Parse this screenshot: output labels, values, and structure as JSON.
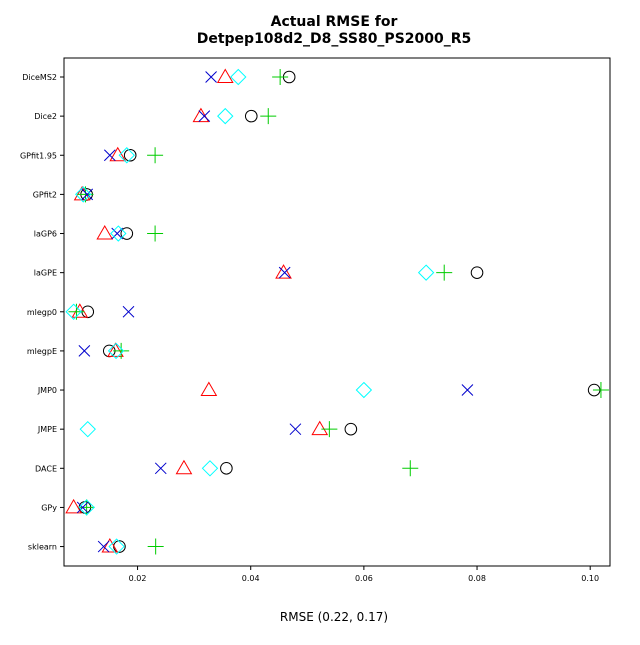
{
  "chart_data": {
    "type": "scatter",
    "title": "Actual RMSE for",
    "subtitle": "Detpep108d2_D8_SS80_PS2000_R5",
    "xlabel": "RMSE (0.22, 0.17)",
    "ylabel": "",
    "xlim": [
      0.007,
      0.1035
    ],
    "xticks": [
      0.02,
      0.04,
      0.06,
      0.08,
      0.1
    ],
    "xtick_labels": [
      "0.02",
      "0.04",
      "0.06",
      "0.08",
      "0.10"
    ],
    "grid": false,
    "legend": "none",
    "categories": [
      "DiceMS2",
      "Dice2",
      "GPfit1.95",
      "GPfit2",
      "laGP6",
      "laGPE",
      "mlegp0",
      "mlegpE",
      "JMP0",
      "JMPE",
      "DACE",
      "GPy",
      "sklearn"
    ],
    "series": [
      {
        "marker": "circle",
        "color": "#000000",
        "values": [
          0.0468,
          0.0401,
          0.0187,
          0.011,
          0.0181,
          0.08,
          0.0112,
          0.015,
          0.1007,
          0.0577,
          0.0357,
          0.0107,
          0.0168
        ]
      },
      {
        "marker": "triangle",
        "color": "#ff0000",
        "values": [
          0.0355,
          0.0312,
          0.0165,
          0.0102,
          0.0142,
          0.0458,
          0.0098,
          0.0161,
          0.0326,
          0.0522,
          0.0282,
          0.0087,
          0.0151
        ]
      },
      {
        "marker": "plus",
        "color": "#00cc00",
        "values": [
          0.0452,
          0.0431,
          0.0231,
          0.0108,
          0.0231,
          0.0742,
          0.0092,
          0.0171,
          0.1019,
          0.0539,
          0.0682,
          0.011,
          0.0232
        ]
      },
      {
        "marker": "x",
        "color": "#0000cc",
        "values": [
          0.033,
          0.0318,
          0.0151,
          0.0111,
          0.0164,
          0.046,
          0.0184,
          0.0106,
          0.0783,
          0.0479,
          0.0241,
          0.0103,
          0.014
        ]
      },
      {
        "marker": "diamond",
        "color": "#00ffff",
        "values": [
          0.0378,
          0.0355,
          0.0181,
          0.0104,
          0.0166,
          0.071,
          0.0087,
          0.0162,
          0.06,
          0.0112,
          0.0328,
          0.011,
          0.0163
        ]
      }
    ]
  }
}
